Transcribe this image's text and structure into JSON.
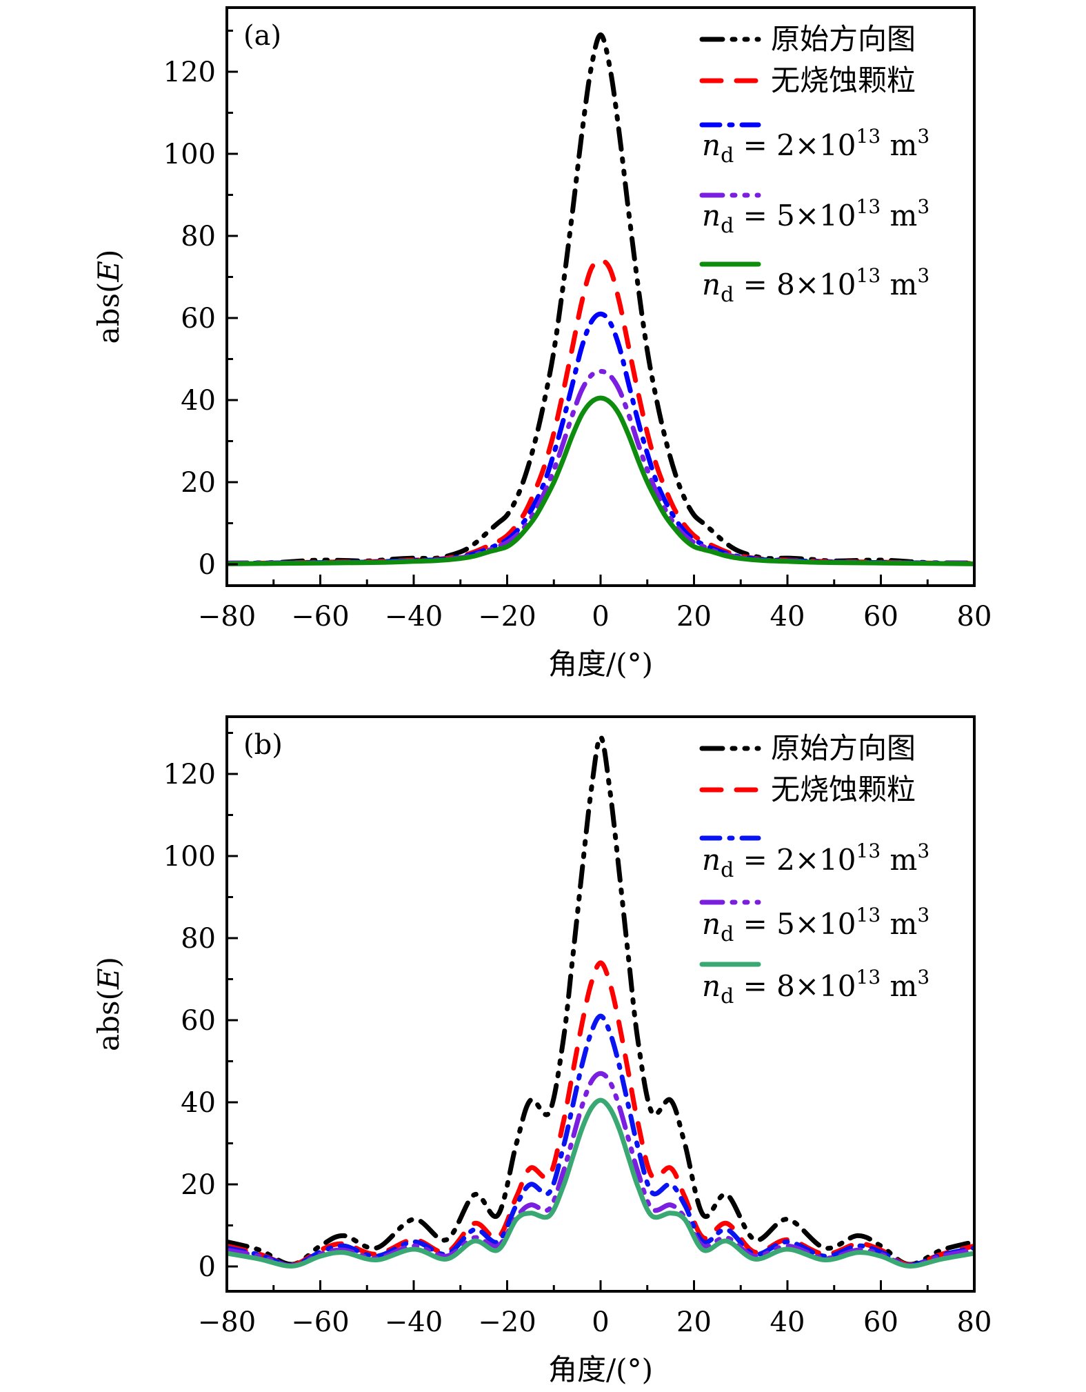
{
  "chart_data": [
    {
      "type": "line",
      "panel_label": "(a)",
      "xlabel": "角度/(°)",
      "ylabel": "abs(E)",
      "xlim": [
        -80,
        80
      ],
      "ylim": [
        -5,
        135
      ],
      "xticks": [
        -80,
        -60,
        -40,
        -20,
        0,
        20,
        40,
        60,
        80
      ],
      "xtick_labels": [
        "−80",
        "−60",
        "−40",
        "−20",
        "0",
        "20",
        "40",
        "60",
        "80"
      ],
      "yticks": [
        0,
        20,
        40,
        60,
        80,
        100,
        120
      ],
      "ytick_labels": [
        "0",
        "20",
        "40",
        "60",
        "80",
        "100",
        "120"
      ],
      "grid": false,
      "legend_position": "top-right",
      "x": [
        -80,
        -70,
        -60,
        -50,
        -45,
        -40,
        -35,
        -30,
        -27,
        -24,
        -22,
        -20,
        -18,
        -16,
        -14,
        -12,
        -10,
        -8,
        -6,
        -4,
        -2,
        0,
        2,
        4,
        6,
        8,
        10,
        12,
        14,
        16,
        18,
        20,
        22,
        24,
        27,
        30,
        35,
        40,
        45,
        50,
        60,
        70,
        80
      ],
      "series": [
        {
          "name": "原始方向图",
          "color": "#000000",
          "dash": "dash-dot-dot",
          "values": [
            0.3,
            0.4,
            1.0,
            0.8,
            1.2,
            1.5,
            1.5,
            3.0,
            5.0,
            8.0,
            10.0,
            12.0,
            16.0,
            22.0,
            30.0,
            40.0,
            52.0,
            68.0,
            86.0,
            105.0,
            121.0,
            129.0,
            121.0,
            105.0,
            86.0,
            68.0,
            52.0,
            40.0,
            30.0,
            22.0,
            16.0,
            12.0,
            10.0,
            8.0,
            5.0,
            3.0,
            1.5,
            1.5,
            1.2,
            0.8,
            1.0,
            0.4,
            0.3
          ]
        },
        {
          "name": "无烧蚀颗粒",
          "color": "#ff0000",
          "dash": "dash",
          "values": [
            0.2,
            0.3,
            0.5,
            0.6,
            0.8,
            1.0,
            1.2,
            2.0,
            3.0,
            4.5,
            5.5,
            7.0,
            9.5,
            13.0,
            18.0,
            24.0,
            32.0,
            42.0,
            53.0,
            64.0,
            72.0,
            74.0,
            72.0,
            64.0,
            53.0,
            42.0,
            32.0,
            24.0,
            18.0,
            13.0,
            9.5,
            7.0,
            5.5,
            4.5,
            3.0,
            2.0,
            1.2,
            1.0,
            0.8,
            0.6,
            0.5,
            0.3,
            0.2
          ]
        },
        {
          "name": "n_d = 2×10^13 m^3",
          "color": "#0000ff",
          "dash": "dash-dot",
          "values": [
            0.2,
            0.3,
            0.4,
            0.5,
            0.7,
            0.9,
            1.1,
            1.8,
            2.6,
            3.8,
            4.8,
            6.0,
            8.0,
            11.0,
            15.0,
            20.0,
            27.0,
            35.0,
            44.0,
            53.0,
            59.0,
            61.0,
            59.0,
            53.0,
            44.0,
            35.0,
            27.0,
            20.0,
            15.0,
            11.0,
            8.0,
            6.0,
            4.8,
            3.8,
            2.6,
            1.8,
            1.1,
            0.9,
            0.7,
            0.5,
            0.4,
            0.3,
            0.2
          ]
        },
        {
          "name": "n_d = 5×10^13 m^3",
          "color": "#7a1fe0",
          "dash": "dash-dot-dot",
          "values": [
            0.2,
            0.3,
            0.4,
            0.5,
            0.6,
            0.8,
            1.0,
            1.6,
            2.3,
            3.4,
            4.3,
            5.3,
            7.0,
            9.5,
            13.0,
            17.5,
            23.0,
            29.5,
            36.5,
            42.5,
            46.0,
            47.0,
            46.0,
            42.5,
            36.5,
            29.5,
            23.0,
            17.5,
            13.0,
            9.5,
            7.0,
            5.3,
            4.3,
            3.4,
            2.3,
            1.6,
            1.0,
            0.8,
            0.6,
            0.5,
            0.4,
            0.3,
            0.2
          ]
        },
        {
          "name": "n_d = 8×10^13 m^3",
          "color": "#0e8c0e",
          "dash": "solid",
          "values": [
            0.1,
            0.2,
            0.3,
            0.4,
            0.5,
            0.7,
            0.9,
            1.4,
            2.0,
            3.0,
            3.6,
            4.3,
            6.0,
            8.5,
            11.5,
            15.5,
            20.0,
            25.5,
            31.5,
            36.5,
            39.5,
            40.5,
            39.5,
            36.5,
            31.5,
            25.5,
            20.0,
            15.5,
            11.5,
            8.5,
            6.0,
            4.3,
            3.6,
            3.0,
            2.0,
            1.4,
            0.9,
            0.7,
            0.5,
            0.4,
            0.3,
            0.2,
            0.1
          ]
        }
      ]
    },
    {
      "type": "line",
      "panel_label": "(b)",
      "xlabel": "角度/(°)",
      "ylabel": "abs(E)",
      "xlim": [
        -80,
        80
      ],
      "ylim": [
        -6,
        134
      ],
      "xticks": [
        -80,
        -60,
        -40,
        -20,
        0,
        20,
        40,
        60,
        80
      ],
      "xtick_labels": [
        "−80",
        "−60",
        "−40",
        "−20",
        "0",
        "20",
        "40",
        "60",
        "80"
      ],
      "yticks": [
        0,
        20,
        40,
        60,
        80,
        100,
        120
      ],
      "ytick_labels": [
        "0",
        "20",
        "40",
        "60",
        "80",
        "100",
        "120"
      ],
      "grid": false,
      "legend_position": "top-right",
      "x": [
        -80,
        -73,
        -66,
        -60,
        -55,
        -48,
        -40,
        -33,
        -27,
        -22,
        -18,
        -15,
        -11,
        -8,
        -6,
        -4,
        -2,
        0,
        2,
        4,
        6,
        8,
        11,
        15,
        18,
        22,
        27,
        33,
        40,
        48,
        55,
        60,
        66,
        73,
        80
      ],
      "series": [
        {
          "name": "原始方向图",
          "color": "#000000",
          "dash": "dash-dot-dot",
          "values": [
            6.0,
            4.0,
            0.5,
            5.0,
            7.5,
            4.5,
            11.5,
            6.5,
            17.5,
            12.5,
            30.0,
            40.5,
            37.5,
            55.0,
            75.0,
            96.0,
            116.0,
            129.0,
            116.0,
            96.0,
            75.0,
            55.0,
            37.5,
            40.5,
            30.0,
            12.5,
            17.5,
            6.5,
            11.5,
            4.5,
            7.5,
            5.0,
            0.5,
            4.0,
            6.0
          ]
        },
        {
          "name": "无烧蚀颗粒",
          "color": "#ff0000",
          "dash": "dash",
          "values": [
            5.0,
            3.0,
            0.4,
            4.0,
            5.5,
            3.0,
            6.5,
            3.5,
            10.5,
            7.0,
            17.0,
            24.0,
            22.0,
            35.0,
            47.0,
            59.0,
            69.0,
            74.0,
            69.0,
            59.0,
            47.0,
            35.0,
            22.0,
            24.0,
            17.0,
            7.0,
            10.5,
            3.5,
            6.5,
            3.0,
            5.5,
            4.0,
            0.4,
            3.0,
            5.0
          ]
        },
        {
          "name": "n_d = 2×10^13 m^3",
          "color": "#0a14f0",
          "dash": "dash-dot",
          "values": [
            4.5,
            2.8,
            0.3,
            3.5,
            5.0,
            2.5,
            6.0,
            3.0,
            9.0,
            6.0,
            15.0,
            20.0,
            18.0,
            29.0,
            39.0,
            49.0,
            57.0,
            61.0,
            57.0,
            49.0,
            39.0,
            29.0,
            18.0,
            20.0,
            15.0,
            6.0,
            9.0,
            3.0,
            6.0,
            2.5,
            5.0,
            3.5,
            0.3,
            2.8,
            4.5
          ]
        },
        {
          "name": "n_d = 5×10^13 m^3",
          "color": "#7a1fe0",
          "dash": "dash-dot-dot",
          "values": [
            4.0,
            2.5,
            0.2,
            3.0,
            4.0,
            2.0,
            5.0,
            2.5,
            7.0,
            5.0,
            12.0,
            15.0,
            14.0,
            23.0,
            31.0,
            39.0,
            45.0,
            47.0,
            45.0,
            39.0,
            31.0,
            23.0,
            14.0,
            15.0,
            12.0,
            5.0,
            7.0,
            2.5,
            5.0,
            2.0,
            4.0,
            3.0,
            0.2,
            2.5,
            4.0
          ]
        },
        {
          "name": "n_d = 8×10^13 m^3",
          "color": "#3aa873",
          "dash": "solid",
          "values": [
            3.2,
            1.8,
            0.1,
            2.5,
            3.4,
            1.6,
            4.2,
            1.8,
            6.2,
            4.0,
            11.5,
            13.0,
            12.3,
            19.5,
            26.5,
            33.5,
            38.5,
            40.5,
            38.5,
            33.5,
            26.5,
            19.5,
            12.3,
            13.0,
            11.5,
            4.0,
            6.2,
            1.8,
            4.2,
            1.6,
            3.4,
            2.5,
            0.1,
            1.8,
            3.2
          ]
        }
      ]
    }
  ],
  "legend": {
    "items": [
      {
        "label": "原始方向图",
        "type": "text"
      },
      {
        "label": "无烧蚀颗粒",
        "type": "text"
      },
      {
        "label_n": "n",
        "label_sub": "d",
        "label_eq": " = 2×10",
        "label_exp": "13",
        "label_unit": " m",
        "label_unit_exp": "3",
        "type": "math"
      },
      {
        "label_n": "n",
        "label_sub": "d",
        "label_eq": " = 5×10",
        "label_exp": "13",
        "label_unit": " m",
        "label_unit_exp": "3",
        "type": "math"
      },
      {
        "label_n": "n",
        "label_sub": "d",
        "label_eq": " = 8×10",
        "label_exp": "13",
        "label_unit": " m",
        "label_unit_exp": "3",
        "type": "math"
      }
    ]
  }
}
